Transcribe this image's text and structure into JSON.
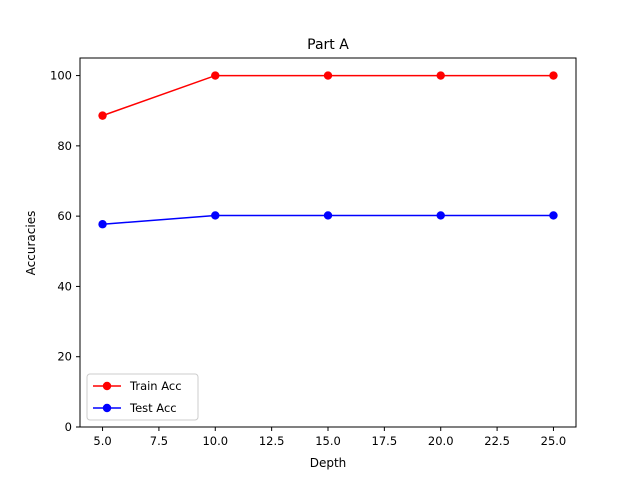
{
  "chart_data": {
    "type": "line",
    "title": "Part A",
    "xlabel": "Depth",
    "ylabel": "Accuracies",
    "x": [
      5,
      10,
      15,
      20,
      25
    ],
    "xlim": [
      4,
      26
    ],
    "ylim": [
      0,
      105
    ],
    "xticks": [
      5.0,
      7.5,
      10.0,
      12.5,
      15.0,
      17.5,
      20.0,
      22.5,
      25.0
    ],
    "xtick_labels": [
      "5.0",
      "7.5",
      "10.0",
      "12.5",
      "15.0",
      "17.5",
      "20.0",
      "22.5",
      "25.0"
    ],
    "yticks": [
      0,
      20,
      40,
      60,
      80,
      100
    ],
    "ytick_labels": [
      "0",
      "20",
      "40",
      "60",
      "80",
      "100"
    ],
    "grid": false,
    "legend_position": "lower-left",
    "series": [
      {
        "name": "Train Acc",
        "color": "#ff0000",
        "marker": "circle",
        "values": [
          88.6,
          100.0,
          100.0,
          100.0,
          100.0
        ]
      },
      {
        "name": "Test Acc",
        "color": "#0000ff",
        "marker": "circle",
        "values": [
          57.7,
          60.2,
          60.2,
          60.2,
          60.2
        ]
      }
    ]
  }
}
